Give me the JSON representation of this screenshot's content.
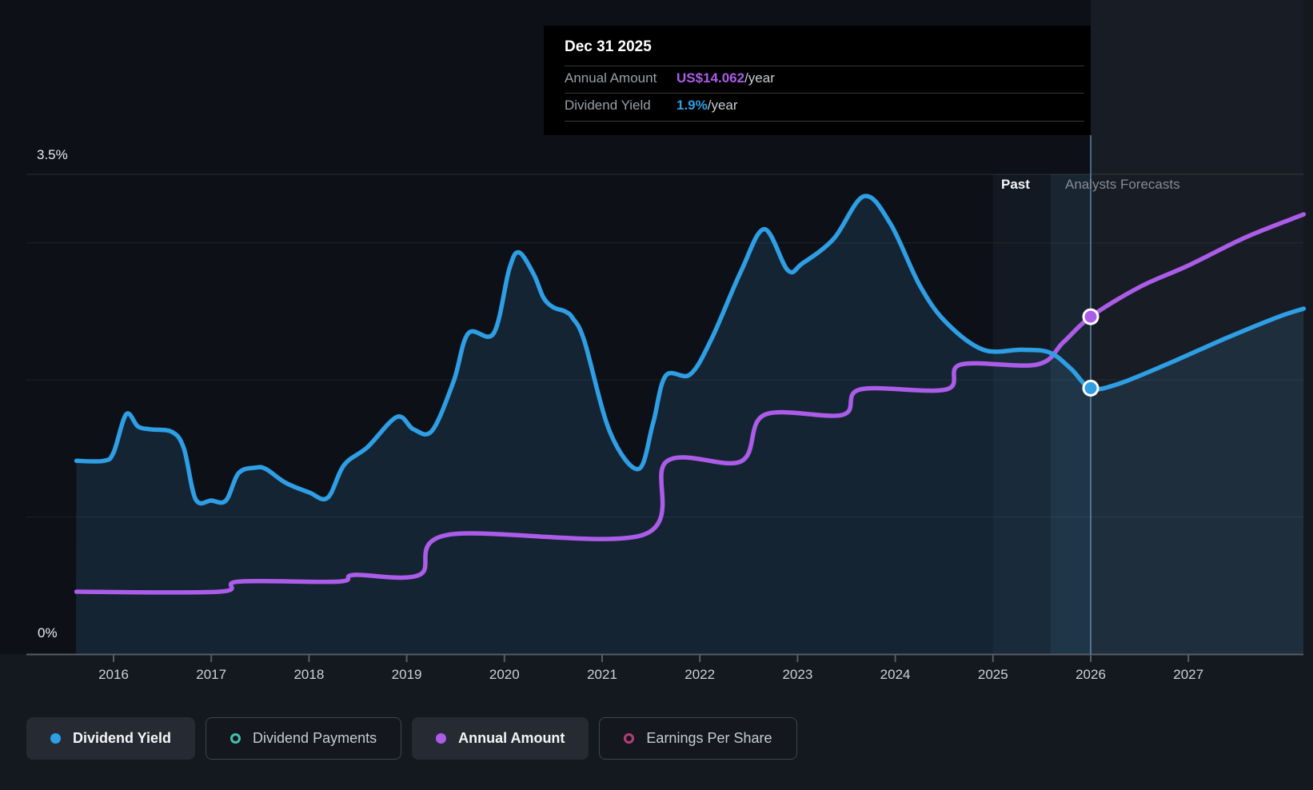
{
  "tooltip": {
    "date": "Dec 31 2025",
    "rows": [
      {
        "label": "Annual Amount",
        "value": "US$14.062",
        "suffix": "/year",
        "color": "#AB5CE8"
      },
      {
        "label": "Dividend Yield",
        "value": "1.9%",
        "suffix": "/year",
        "color": "#2E9EE5"
      }
    ]
  },
  "regions": {
    "past_label": "Past",
    "forecast_label": "Analysts Forecasts"
  },
  "y_axis": {
    "top_label": "3.5%",
    "bottom_label": "0%"
  },
  "x_axis": {
    "years": [
      "2016",
      "2017",
      "2018",
      "2019",
      "2020",
      "2021",
      "2022",
      "2023",
      "2024",
      "2025",
      "2026",
      "2027"
    ]
  },
  "legend": [
    {
      "label": "Dividend Yield",
      "marker": "dot",
      "color": "#2E9EE5",
      "active": true
    },
    {
      "label": "Dividend Payments",
      "marker": "ring",
      "color": "#45BFAD",
      "active": false
    },
    {
      "label": "Annual Amount",
      "marker": "dot",
      "color": "#AB5CE8",
      "active": true
    },
    {
      "label": "Earnings Per Share",
      "marker": "ring",
      "color": "#B53E79",
      "active": false
    }
  ],
  "chart_data": {
    "type": "area",
    "title": "Dividend yield history and analysts forecasts",
    "x_range": [
      2015.6,
      2028.2
    ],
    "x_ticks": [
      2016,
      2017,
      2018,
      2019,
      2020,
      2021,
      2022,
      2023,
      2024,
      2025,
      2026,
      2027
    ],
    "y_left": {
      "label": "Dividend Yield",
      "unit": "%",
      "min": 0,
      "max": 3.5,
      "gridlines_pct": [
        1,
        2,
        3,
        3.5
      ]
    },
    "divider_year": 2026.0,
    "highlight_band": [
      2025.0,
      2026.0
    ],
    "marker_point": {
      "date": "Dec 31 2025",
      "annual_amount_usd": 14.062,
      "dividend_yield_pct": 1.9
    },
    "series": [
      {
        "name": "Dividend Yield",
        "unit": "%",
        "color": "#2E9EE5",
        "area_fill": true,
        "points": [
          [
            2015.62,
            1.41
          ],
          [
            2015.9,
            1.41
          ],
          [
            2016.0,
            1.47
          ],
          [
            2016.13,
            1.75
          ],
          [
            2016.25,
            1.66
          ],
          [
            2016.38,
            1.64
          ],
          [
            2016.6,
            1.62
          ],
          [
            2016.72,
            1.5
          ],
          [
            2016.84,
            1.13
          ],
          [
            2017.0,
            1.12
          ],
          [
            2017.15,
            1.12
          ],
          [
            2017.28,
            1.32
          ],
          [
            2017.45,
            1.36
          ],
          [
            2017.56,
            1.35
          ],
          [
            2017.76,
            1.25
          ],
          [
            2018.0,
            1.18
          ],
          [
            2018.19,
            1.14
          ],
          [
            2018.36,
            1.38
          ],
          [
            2018.6,
            1.51
          ],
          [
            2018.9,
            1.73
          ],
          [
            2019.07,
            1.64
          ],
          [
            2019.26,
            1.63
          ],
          [
            2019.48,
            1.99
          ],
          [
            2019.63,
            2.34
          ],
          [
            2019.89,
            2.34
          ],
          [
            2020.05,
            2.81
          ],
          [
            2020.15,
            2.93
          ],
          [
            2020.3,
            2.77
          ],
          [
            2020.4,
            2.6
          ],
          [
            2020.5,
            2.53
          ],
          [
            2020.62,
            2.5
          ],
          [
            2020.7,
            2.45
          ],
          [
            2020.82,
            2.28
          ],
          [
            2021.08,
            1.62
          ],
          [
            2021.37,
            1.35
          ],
          [
            2021.52,
            1.68
          ],
          [
            2021.65,
            2.03
          ],
          [
            2021.9,
            2.04
          ],
          [
            2022.12,
            2.3
          ],
          [
            2022.42,
            2.79
          ],
          [
            2022.66,
            3.1
          ],
          [
            2022.9,
            2.8
          ],
          [
            2023.05,
            2.85
          ],
          [
            2023.37,
            3.03
          ],
          [
            2023.68,
            3.34
          ],
          [
            2023.95,
            3.14
          ],
          [
            2024.25,
            2.69
          ],
          [
            2024.52,
            2.42
          ],
          [
            2024.9,
            2.22
          ],
          [
            2025.3,
            2.22
          ],
          [
            2025.58,
            2.2
          ],
          [
            2025.8,
            2.08
          ],
          [
            2026.0,
            1.94
          ],
          [
            2026.28,
            1.97
          ],
          [
            2026.83,
            2.13
          ],
          [
            2027.37,
            2.3
          ],
          [
            2027.92,
            2.46
          ],
          [
            2028.18,
            2.52
          ]
        ]
      },
      {
        "name": "Annual Amount",
        "unit": "US$/year",
        "color": "#AB5CE8",
        "area_fill": false,
        "points": [
          [
            2015.62,
            2.6
          ],
          [
            2017.08,
            2.6
          ],
          [
            2017.28,
            3.02
          ],
          [
            2018.3,
            3.02
          ],
          [
            2018.46,
            3.3
          ],
          [
            2019.13,
            3.3
          ],
          [
            2019.42,
            4.97
          ],
          [
            2021.42,
            4.97
          ],
          [
            2021.66,
            8.03
          ],
          [
            2022.42,
            8.03
          ],
          [
            2022.66,
            9.97
          ],
          [
            2023.46,
            9.97
          ],
          [
            2023.64,
            11.03
          ],
          [
            2024.52,
            11.03
          ],
          [
            2024.67,
            12.07
          ],
          [
            2025.45,
            12.07
          ],
          [
            2025.72,
            13.0
          ],
          [
            2026.0,
            14.062
          ],
          [
            2026.5,
            15.3
          ],
          [
            2027.0,
            16.2
          ],
          [
            2027.6,
            17.4
          ],
          [
            2028.18,
            18.33
          ]
        ]
      }
    ]
  }
}
